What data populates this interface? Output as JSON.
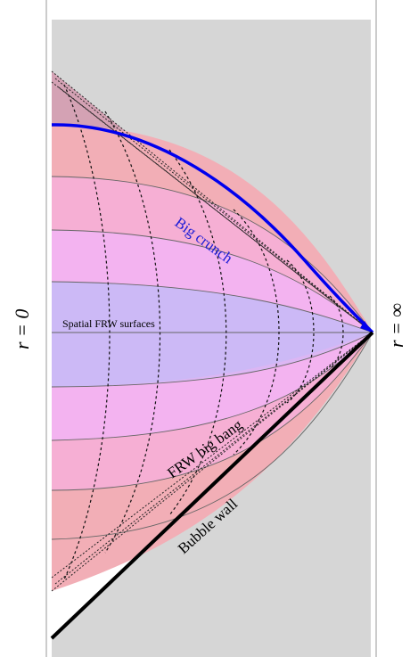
{
  "labels": {
    "r_zero": "r = 0",
    "r_infinity": "r = ∞",
    "big_crunch": "Big crunch",
    "frw_big_bang": "FRW big bang",
    "bubble_wall": "Bubble wall",
    "spatial_frw": "Spatial FRW surfaces"
  },
  "colors": {
    "background_gray": "#d6d6d6",
    "frame_line": "#999999",
    "center_band": "#c0bbf7",
    "mid_band": "#dcb6f3",
    "outer_band": "#f3b3f0",
    "pink_band": "#f6afd4",
    "edge_band": "#f2aeb6",
    "top_cap": "#d4a2b4",
    "bubble_wall": "#000000",
    "big_crunch": "#0000ee"
  }
}
